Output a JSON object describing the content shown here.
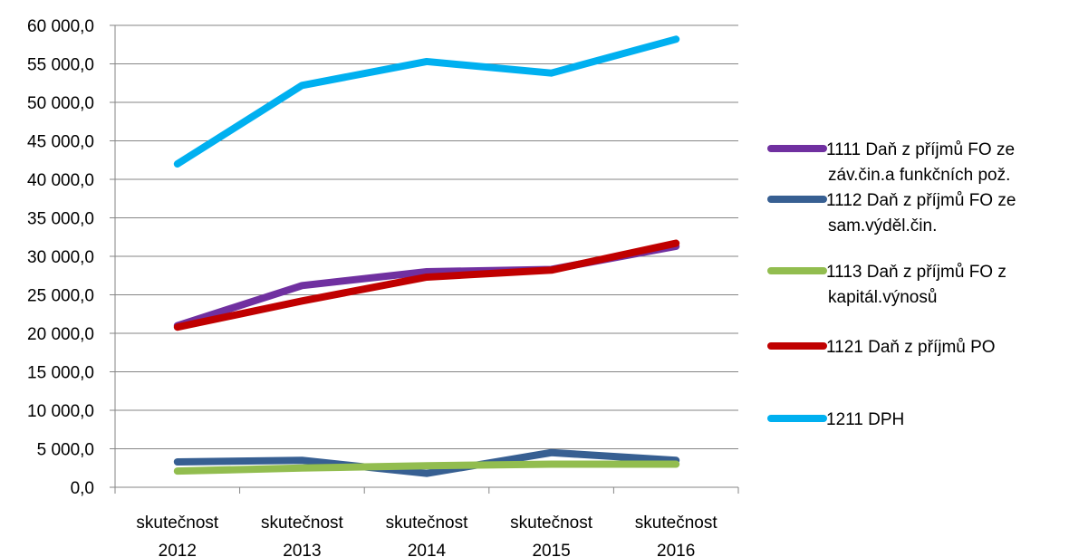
{
  "chart_data": {
    "type": "line",
    "categories": [
      [
        "skutečnost",
        "2012"
      ],
      [
        "skutečnost",
        "2013"
      ],
      [
        "skutečnost",
        "2014"
      ],
      [
        "skutečnost",
        "2015"
      ],
      [
        "skutečnost",
        "2016"
      ]
    ],
    "y_ticks": [
      "0,0",
      "5 000,0",
      "10 000,0",
      "15 000,0",
      "20 000,0",
      "25 000,0",
      "30 000,0",
      "35 000,0",
      "40 000,0",
      "45 000,0",
      "50 000,0",
      "55 000,0",
      "60 000,0"
    ],
    "ylim": [
      0,
      60000
    ],
    "grid": "horizontal",
    "legend_position": "right",
    "series": [
      {
        "name_lines": [
          "1111 Daň z příjmů FO ze",
          "záv.čin.a funkčních pož."
        ],
        "color": "#7030a0",
        "values": [
          21000,
          26200,
          28000,
          28300,
          31300
        ]
      },
      {
        "name_lines": [
          "1112 Daň z příjmů FO ze",
          "sam.výděl.čin."
        ],
        "color": "#375f92",
        "values": [
          3300,
          3500,
          1800,
          4500,
          3500
        ]
      },
      {
        "name_lines": [
          "1113 Daň z příjmů FO z",
          "kapitál.výnosů"
        ],
        "color": "#92bd4f",
        "values": [
          2100,
          2500,
          2800,
          3000,
          3000
        ]
      },
      {
        "name_lines": [
          "1121 Daň z příjmů PO"
        ],
        "color": "#c00000",
        "values": [
          20800,
          24200,
          27300,
          28200,
          31700
        ]
      },
      {
        "name_lines": [
          "1211 DPH"
        ],
        "color": "#00b0f0",
        "values": [
          42000,
          52200,
          55300,
          53800,
          58200
        ]
      }
    ]
  }
}
